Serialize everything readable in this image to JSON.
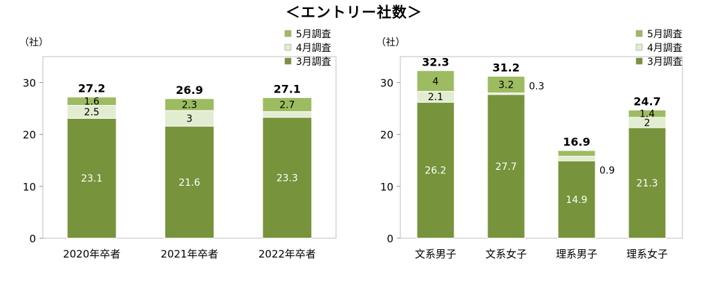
{
  "title": "＜エントリー社数＞",
  "legend": {
    "items": [
      {
        "label": "5月調査",
        "color": "#9dbb61"
      },
      {
        "label": "4月調査",
        "color": "#e2ecd0"
      },
      {
        "label": "3月調査",
        "color": "#77933c"
      }
    ]
  },
  "chart_data": [
    {
      "type": "bar",
      "stacked": true,
      "ylabel": "（社）",
      "ylim": [
        0,
        35
      ],
      "yticks": [
        0,
        10,
        20,
        30
      ],
      "categories": [
        "2020年卒者",
        "2021年卒者",
        "2022年卒者"
      ],
      "series": [
        {
          "name": "3月調査",
          "values": [
            23.1,
            21.6,
            23.3
          ]
        },
        {
          "name": "4月調査",
          "values": [
            2.5,
            3.0,
            1.1
          ]
        },
        {
          "name": "5月調査",
          "values": [
            1.6,
            2.3,
            2.7
          ]
        }
      ],
      "totals": [
        "27.2",
        "26.9",
        "27.1"
      ],
      "legend_position": "top-right"
    },
    {
      "type": "bar",
      "stacked": true,
      "ylabel": "（社）",
      "ylim": [
        0,
        35
      ],
      "yticks": [
        0,
        10,
        20,
        30
      ],
      "categories": [
        "文系男子",
        "文系女子",
        "理系男子",
        "理系女子"
      ],
      "series": [
        {
          "name": "3月調査",
          "values": [
            26.2,
            27.7,
            14.9,
            21.3
          ]
        },
        {
          "name": "4月調査",
          "values": [
            2.1,
            0.3,
            0.9,
            2.0
          ]
        },
        {
          "name": "5月調査",
          "values": [
            4.0,
            3.2,
            1.1,
            1.4
          ]
        }
      ],
      "totals": [
        "32.3",
        "31.2",
        "16.9",
        "24.7"
      ],
      "outside_labels": [
        false,
        true,
        true,
        false
      ],
      "legend_position": "top-right"
    }
  ]
}
